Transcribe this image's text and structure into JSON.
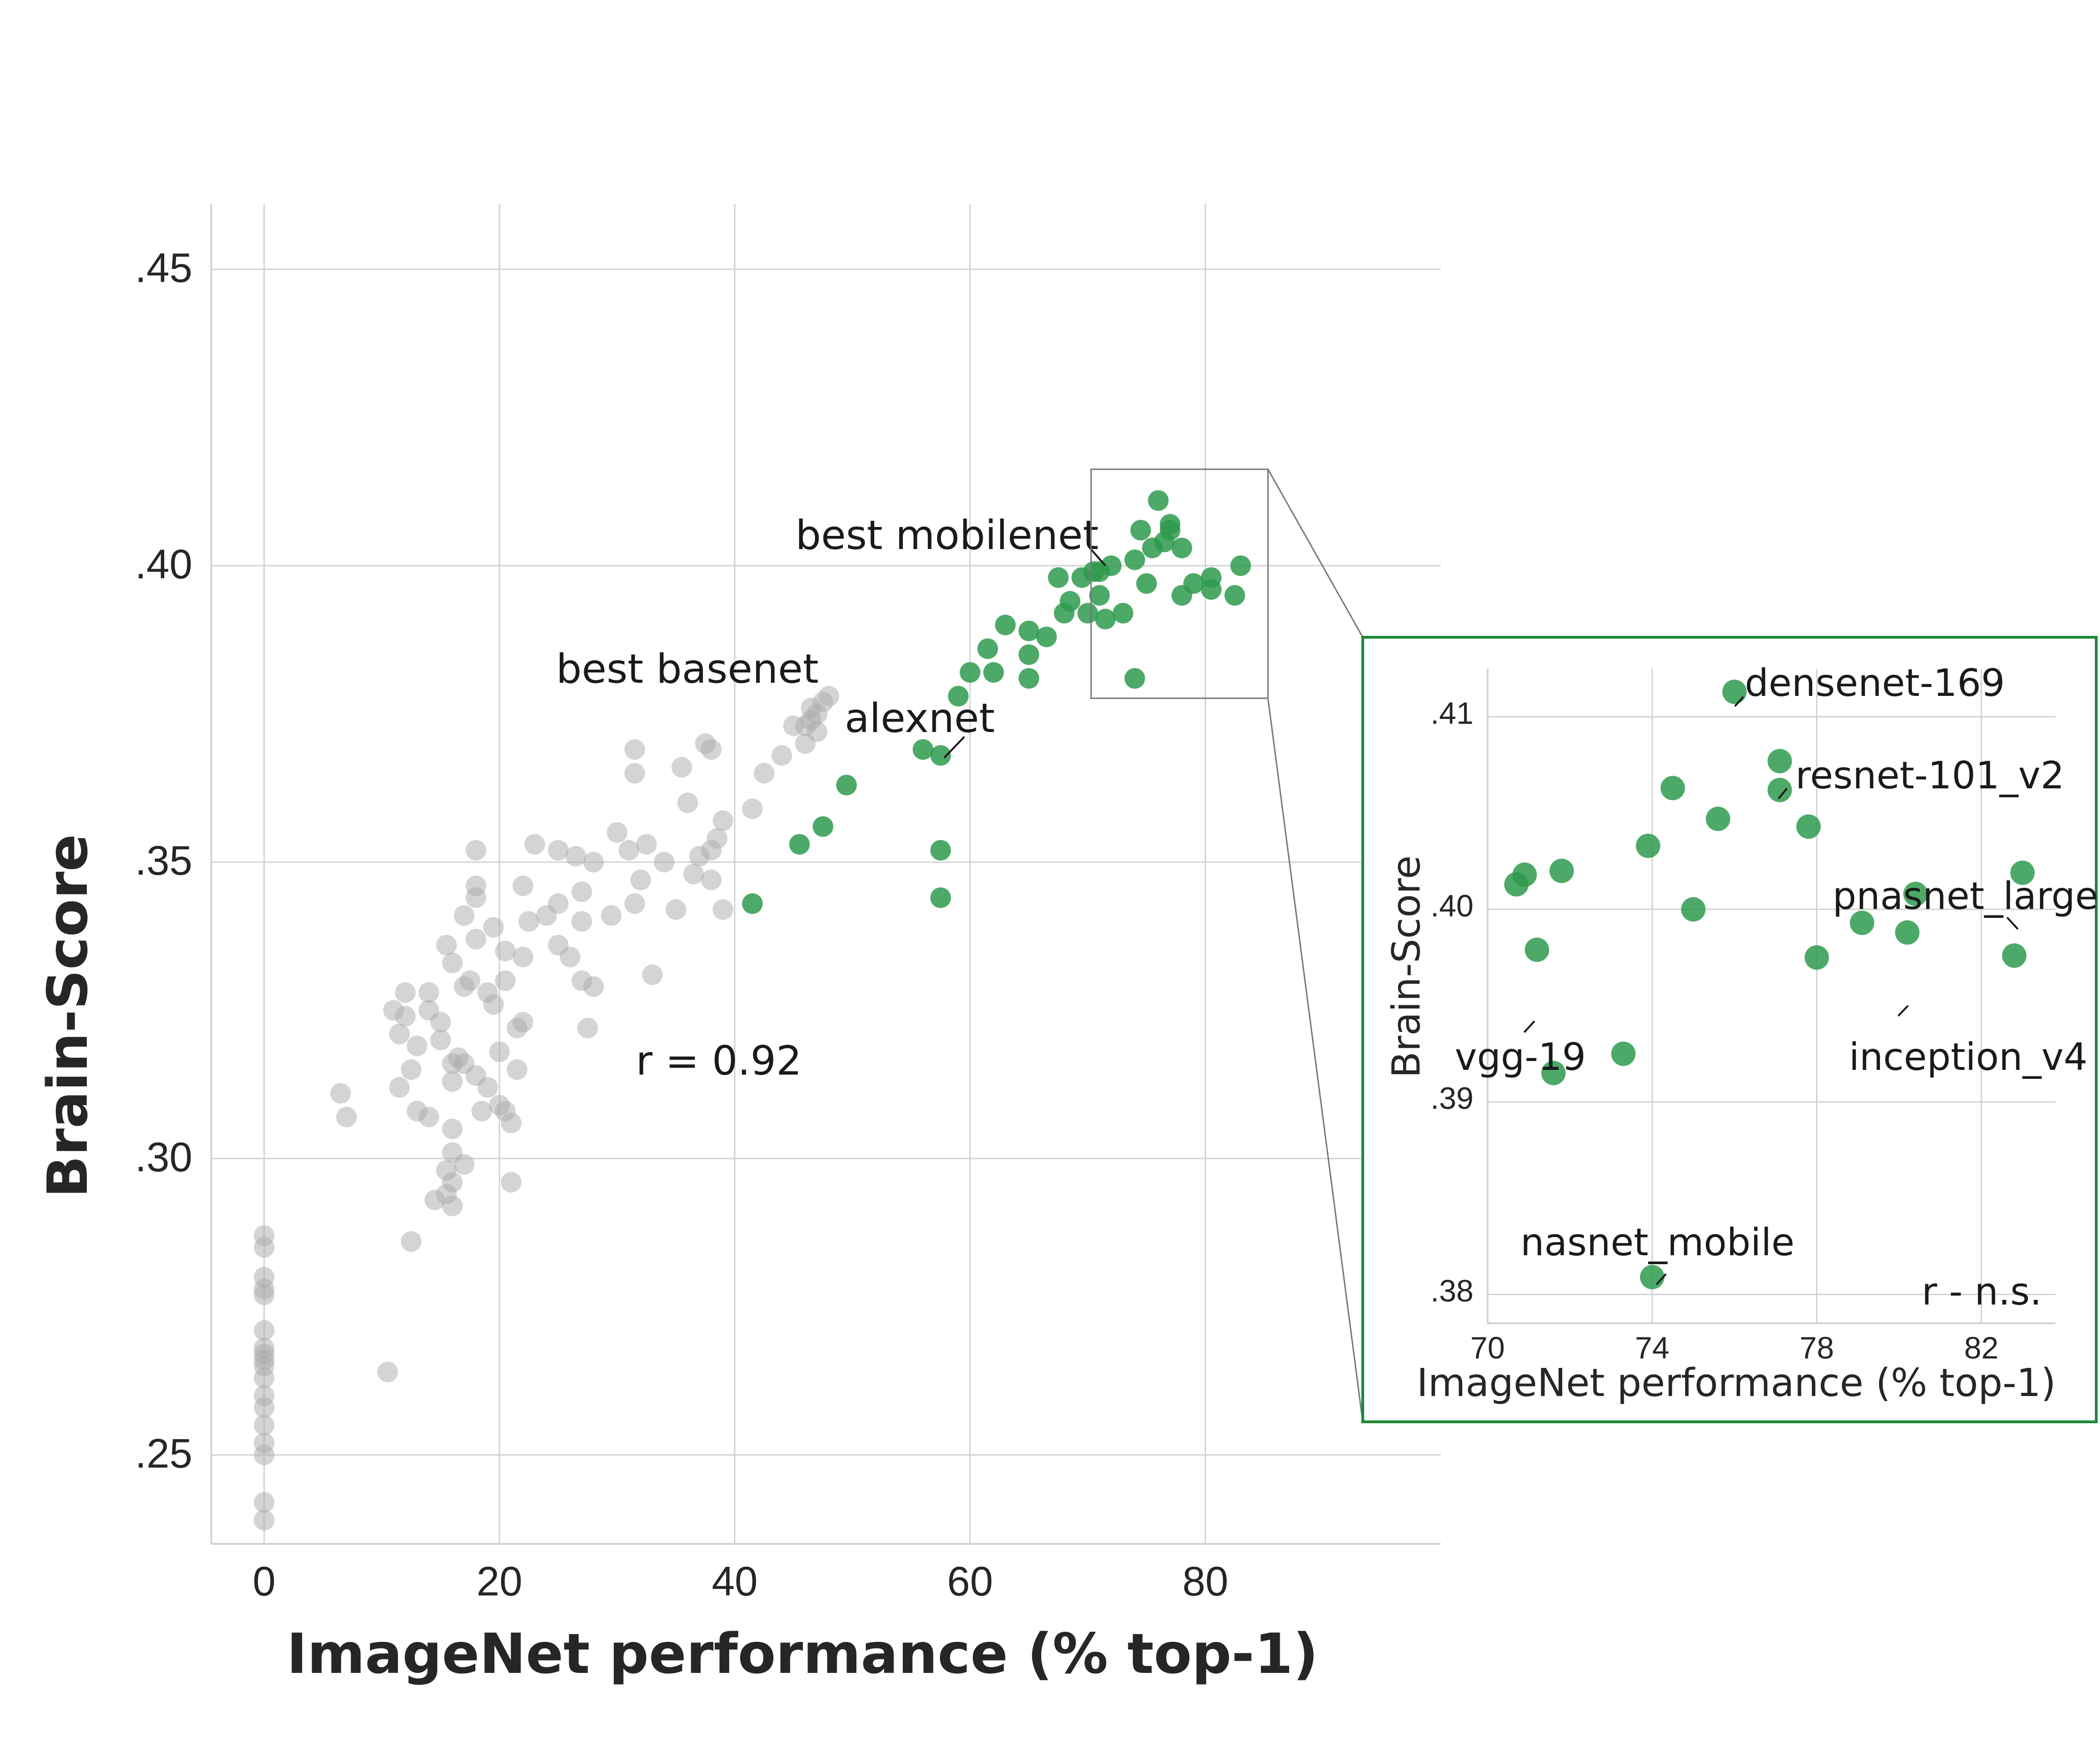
{
  "chart_data": [
    {
      "type": "scatter",
      "xlabel": "ImageNet performance (% top-1)",
      "ylabel": "Brain-Score",
      "xlim": [
        -4.5,
        100
      ],
      "ylim": [
        0.235,
        0.461
      ],
      "x_ticks": [
        0,
        20,
        40,
        60,
        80
      ],
      "x_tick_labels": [
        "0",
        "20",
        "40",
        "60",
        "80"
      ],
      "y_ticks": [
        0.25,
        0.3,
        0.35,
        0.4,
        0.45
      ],
      "y_tick_labels": [
        ".25",
        ".30",
        ".35",
        ".40",
        ".45"
      ],
      "grid": true,
      "annotations": {
        "correlation": "r = 0.92",
        "best_mobilenet": "best mobilenet",
        "best_basenet": "best basenet",
        "alexnet": "alexnet"
      },
      "series": [
        {
          "color": "#a9a9a9",
          "points": [
            [
              0,
              0.287
            ],
            [
              0,
              0.285
            ],
            [
              0,
              0.28
            ],
            [
              0,
              0.278
            ],
            [
              0,
              0.277
            ],
            [
              0,
              0.271
            ],
            [
              0,
              0.268
            ],
            [
              0,
              0.267
            ],
            [
              0,
              0.266
            ],
            [
              0,
              0.265
            ],
            [
              0,
              0.263
            ],
            [
              0,
              0.26
            ],
            [
              0,
              0.258
            ],
            [
              0,
              0.255
            ],
            [
              0,
              0.252
            ],
            [
              0,
              0.25
            ],
            [
              0,
              0.242
            ],
            [
              0,
              0.239
            ],
            [
              6.5,
              0.311
            ],
            [
              7,
              0.307
            ],
            [
              10.5,
              0.264
            ],
            [
              11,
              0.325
            ],
            [
              11.5,
              0.312
            ],
            [
              11.5,
              0.321
            ],
            [
              12,
              0.328
            ],
            [
              12,
              0.324
            ],
            [
              12.5,
              0.315
            ],
            [
              12.5,
              0.286
            ],
            [
              13,
              0.319
            ],
            [
              13,
              0.308
            ],
            [
              14,
              0.328
            ],
            [
              14,
              0.325
            ],
            [
              14,
              0.307
            ],
            [
              14.5,
              0.293
            ],
            [
              15,
              0.323
            ],
            [
              15,
              0.32
            ],
            [
              15.5,
              0.336
            ],
            [
              15.5,
              0.298
            ],
            [
              15.5,
              0.294
            ],
            [
              16,
              0.333
            ],
            [
              16,
              0.316
            ],
            [
              16,
              0.313
            ],
            [
              16,
              0.305
            ],
            [
              16,
              0.301
            ],
            [
              16,
              0.296
            ],
            [
              16,
              0.292
            ],
            [
              16.5,
              0.317
            ],
            [
              17,
              0.341
            ],
            [
              17,
              0.329
            ],
            [
              17,
              0.316
            ],
            [
              17,
              0.299
            ],
            [
              17.5,
              0.33
            ],
            [
              18,
              0.352
            ],
            [
              18,
              0.346
            ],
            [
              18,
              0.344
            ],
            [
              18,
              0.337
            ],
            [
              18,
              0.314
            ],
            [
              18.5,
              0.308
            ],
            [
              19,
              0.328
            ],
            [
              19,
              0.312
            ],
            [
              19.5,
              0.339
            ],
            [
              19.5,
              0.326
            ],
            [
              20,
              0.318
            ],
            [
              20,
              0.309
            ],
            [
              20.5,
              0.335
            ],
            [
              20.5,
              0.33
            ],
            [
              20.5,
              0.308
            ],
            [
              21,
              0.306
            ],
            [
              21,
              0.296
            ],
            [
              21.5,
              0.322
            ],
            [
              21.5,
              0.315
            ],
            [
              22,
              0.346
            ],
            [
              22,
              0.334
            ],
            [
              22.5,
              0.34
            ],
            [
              23,
              0.353
            ],
            [
              24,
              0.341
            ],
            [
              25,
              0.352
            ],
            [
              25,
              0.343
            ],
            [
              25,
              0.336
            ],
            [
              26,
              0.334
            ],
            [
              26.5,
              0.351
            ],
            [
              27,
              0.345
            ],
            [
              27,
              0.34
            ],
            [
              27,
              0.33
            ],
            [
              27.5,
              0.322
            ],
            [
              28,
              0.35
            ],
            [
              28,
              0.329
            ],
            [
              29.5,
              0.341
            ],
            [
              30,
              0.355
            ],
            [
              31,
              0.352
            ],
            [
              31.5,
              0.343
            ],
            [
              32,
              0.347
            ],
            [
              32.5,
              0.353
            ],
            [
              33,
              0.331
            ],
            [
              34,
              0.35
            ],
            [
              35,
              0.342
            ],
            [
              35.5,
              0.366
            ],
            [
              36,
              0.36
            ],
            [
              36.5,
              0.348
            ],
            [
              37,
              0.351
            ],
            [
              37.5,
              0.37
            ],
            [
              38,
              0.369
            ],
            [
              38,
              0.352
            ],
            [
              38,
              0.347
            ],
            [
              38.5,
              0.354
            ],
            [
              39,
              0.357
            ],
            [
              39,
              0.342
            ],
            [
              41.5,
              0.359
            ],
            [
              42.5,
              0.365
            ],
            [
              44,
              0.368
            ],
            [
              45,
              0.373
            ],
            [
              46,
              0.37
            ],
            [
              46,
              0.373
            ],
            [
              46.5,
              0.374
            ],
            [
              46.5,
              0.376
            ],
            [
              47,
              0.375
            ],
            [
              47,
              0.372
            ],
            [
              47.5,
              0.377
            ],
            [
              48,
              0.378
            ],
            [
              31.5,
              0.365
            ],
            [
              31.5,
              0.369
            ],
            [
              22,
              0.323
            ]
          ]
        },
        {
          "color": "#2e9a4e",
          "points": [
            [
              41.5,
              0.343
            ],
            [
              45.5,
              0.353
            ],
            [
              47.5,
              0.356
            ],
            [
              49.5,
              0.363
            ],
            [
              56,
              0.369
            ],
            [
              57.5,
              0.368
            ],
            [
              57.5,
              0.352
            ],
            [
              57.5,
              0.344
            ],
            [
              59,
              0.378
            ],
            [
              60,
              0.382
            ],
            [
              61.5,
              0.386
            ],
            [
              62,
              0.382
            ],
            [
              63,
              0.39
            ],
            [
              65,
              0.385
            ],
            [
              65,
              0.381
            ],
            [
              65,
              0.389
            ],
            [
              66.5,
              0.388
            ],
            [
              67.5,
              0.398
            ],
            [
              68,
              0.392
            ],
            [
              68.5,
              0.394
            ],
            [
              69.5,
              0.398
            ],
            [
              70,
              0.392
            ],
            [
              70.5,
              0.399
            ],
            [
              71,
              0.395
            ],
            [
              71,
              0.399
            ],
            [
              71.5,
              0.391
            ],
            [
              72,
              0.4
            ],
            [
              73,
              0.392
            ],
            [
              74,
              0.401
            ],
            [
              74,
              0.381
            ],
            [
              74.5,
              0.406
            ],
            [
              75,
              0.397
            ],
            [
              75.5,
              0.403
            ],
            [
              76,
              0.411
            ],
            [
              76.5,
              0.404
            ],
            [
              77,
              0.407
            ],
            [
              77,
              0.406
            ],
            [
              78,
              0.403
            ],
            [
              78,
              0.395
            ],
            [
              79,
              0.397
            ],
            [
              80.5,
              0.398
            ],
            [
              80.5,
              0.396
            ],
            [
              82.5,
              0.395
            ],
            [
              83,
              0.4
            ]
          ]
        }
      ]
    },
    {
      "type": "scatter",
      "xlabel": "ImageNet performance (% top-1)",
      "ylabel": "Brain-Score",
      "xlim": [
        70,
        83.8
      ],
      "ylim": [
        0.3785,
        0.4125
      ],
      "x_ticks": [
        70,
        74,
        78,
        82
      ],
      "x_tick_labels": [
        "70",
        "74",
        "78",
        "82"
      ],
      "y_ticks": [
        0.38,
        0.39,
        0.4,
        0.41
      ],
      "y_tick_labels": [
        ".38",
        ".39",
        ".40",
        ".41"
      ],
      "grid": true,
      "annotations": {
        "correlation": "r - n.s.",
        "densenet": "densenet-169",
        "resnet": "resnet-101_v2",
        "pnasnet": "pnasnet_large",
        "vgg": "vgg-19",
        "inception": "inception_v4",
        "nasnet": "nasnet_mobile"
      },
      "series": [
        {
          "color": "#2e9a4e",
          "points": [
            [
              70.7,
              0.4013
            ],
            [
              70.9,
              0.4018
            ],
            [
              71.2,
              0.3979
            ],
            [
              71.6,
              0.3915
            ],
            [
              71.8,
              0.402
            ],
            [
              73.3,
              0.3925
            ],
            [
              73.9,
              0.4033
            ],
            [
              74.5,
              0.4063
            ],
            [
              75,
              0.4
            ],
            [
              75.6,
              0.4047
            ],
            [
              76,
              0.4113
            ],
            [
              77.1,
              0.4077
            ],
            [
              77.1,
              0.4062
            ],
            [
              77.8,
              0.4043
            ],
            [
              78,
              0.3975
            ],
            [
              79.1,
              0.3993
            ],
            [
              80.2,
              0.3988
            ],
            [
              80.4,
              0.4008
            ],
            [
              82.8,
              0.3976
            ],
            [
              83,
              0.4019
            ],
            [
              74,
              0.3809
            ]
          ]
        }
      ]
    }
  ]
}
